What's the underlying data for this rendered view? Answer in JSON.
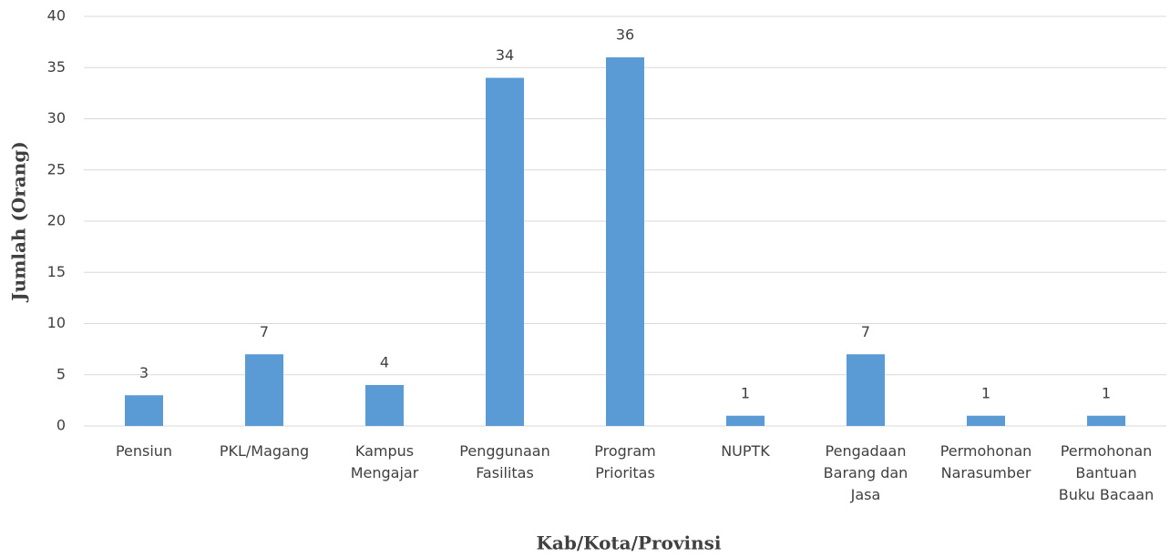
{
  "chart_data": {
    "type": "bar",
    "x_label": "Kab/Kota/Provinsi",
    "y_label": "Jumlah (Orang)",
    "categories": [
      "Pensiun",
      "PKL/Magang",
      "Kampus Mengajar",
      "Penggunaan Fasilitas",
      "Program Prioritas",
      "NUPTK",
      "Pengadaan Barang dan Jasa",
      "Permohonan Narasumber",
      "Permohonan Bantuan Buku Bacaan"
    ],
    "values": [
      3,
      7,
      4,
      34,
      36,
      1,
      7,
      1,
      1
    ],
    "color": "#5b9bd5",
    "ylim": [
      0,
      40
    ],
    "yticks": [
      0,
      5,
      10,
      15,
      20,
      25,
      30,
      35,
      40
    ],
    "grid": true
  }
}
